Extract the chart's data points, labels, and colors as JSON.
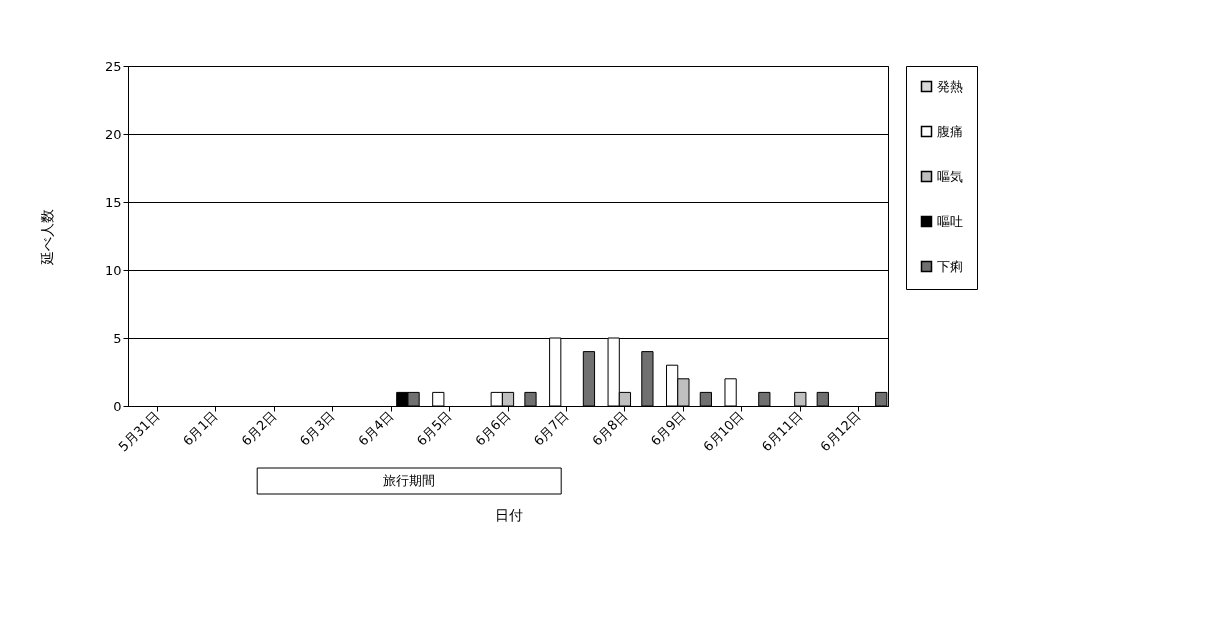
{
  "chart_data": {
    "type": "bar",
    "xlabel": "日付",
    "ylabel": "延べ人数",
    "categories": [
      "5月31日",
      "6月1日",
      "6月2日",
      "6月3日",
      "6月4日",
      "6月5日",
      "6月6日",
      "6月7日",
      "6月8日",
      "6月9日",
      "6月10日",
      "6月11日",
      "6月12日"
    ],
    "series": [
      {
        "name": "発熱",
        "color": "#d9d9d9",
        "values": [
          0,
          0,
          0,
          0,
          0,
          0,
          0,
          0,
          0,
          0,
          0,
          0,
          0
        ]
      },
      {
        "name": "腹痛",
        "color": "#ffffff",
        "values": [
          0,
          0,
          0,
          0,
          0,
          1,
          1,
          5,
          5,
          3,
          2,
          0,
          0
        ]
      },
      {
        "name": "嘔気",
        "color": "#bfbfbf",
        "values": [
          0,
          0,
          0,
          0,
          0,
          0,
          1,
          0,
          1,
          2,
          0,
          1,
          0
        ]
      },
      {
        "name": "嘔吐",
        "color": "#000000",
        "values": [
          0,
          0,
          0,
          0,
          1,
          0,
          0,
          0,
          0,
          0,
          0,
          0,
          0
        ]
      },
      {
        "name": "下痢",
        "color": "#707070",
        "values": [
          0,
          0,
          0,
          0,
          1,
          0,
          1,
          4,
          4,
          1,
          1,
          1,
          1
        ]
      }
    ],
    "ylim": [
      0,
      25
    ],
    "yticks": [
      0,
      5,
      10,
      15,
      20,
      25
    ],
    "grid": "y",
    "legend": "right",
    "annotations": [
      "旅行期間"
    ]
  }
}
